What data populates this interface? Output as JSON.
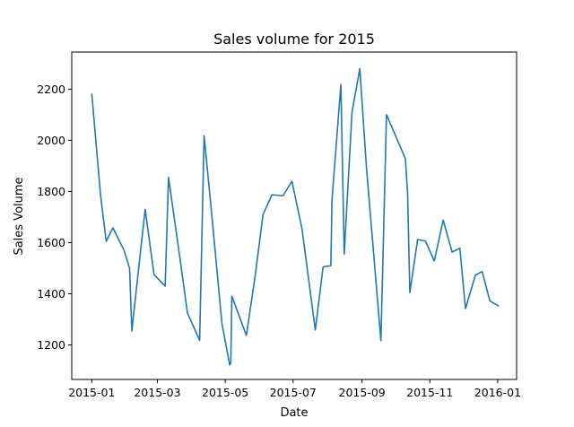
{
  "chart_data": {
    "type": "line",
    "title": "Sales volume for 2015",
    "xlabel": "Date",
    "ylabel": "Sales Volume",
    "grid": false,
    "legend": "none",
    "xlim": [
      "2014-12-14",
      "2016-01-18"
    ],
    "ylim": [
      1065,
      2345
    ],
    "x_ticks": [
      {
        "date": "2015-01-01",
        "label": "2015-01"
      },
      {
        "date": "2015-03-01",
        "label": "2015-03"
      },
      {
        "date": "2015-05-01",
        "label": "2015-05"
      },
      {
        "date": "2015-07-01",
        "label": "2015-07"
      },
      {
        "date": "2015-09-01",
        "label": "2015-09"
      },
      {
        "date": "2015-11-01",
        "label": "2015-11"
      },
      {
        "date": "2016-01-01",
        "label": "2016-01"
      }
    ],
    "y_ticks": [
      1200,
      1400,
      1600,
      1800,
      2000,
      2200
    ],
    "color": "#1f77b4",
    "series": [
      {
        "x": [
          "2015-01-01",
          "2015-01-09",
          "2015-01-14",
          "2015-01-20",
          "2015-01-30",
          "2015-02-04",
          "2015-02-06",
          "2015-02-18",
          "2015-02-26",
          "2015-03-08",
          "2015-03-11",
          "2015-03-21",
          "2015-03-28",
          "2015-04-08",
          "2015-04-12",
          "2015-04-19",
          "2015-04-28",
          "2015-05-05",
          "2015-05-06",
          "2015-05-07",
          "2015-05-20",
          "2015-05-28",
          "2015-06-04",
          "2015-06-12",
          "2015-06-22",
          "2015-06-30",
          "2015-07-09",
          "2015-07-21",
          "2015-07-28",
          "2015-08-04",
          "2015-08-05",
          "2015-08-13",
          "2015-08-16",
          "2015-08-23",
          "2015-08-30",
          "2015-09-05",
          "2015-09-18",
          "2015-09-23",
          "2015-10-10",
          "2015-10-12",
          "2015-10-14",
          "2015-10-21",
          "2015-10-28",
          "2015-11-05",
          "2015-11-13",
          "2015-11-21",
          "2015-11-28",
          "2015-12-03",
          "2015-12-12",
          "2015-12-18",
          "2015-12-25",
          "2016-01-02"
        ],
        "y": [
          2183,
          1780,
          1605,
          1658,
          1570,
          1500,
          1255,
          1730,
          1475,
          1430,
          1855,
          1548,
          1325,
          1218,
          2018,
          1705,
          1285,
          1122,
          1128,
          1390,
          1237,
          1472,
          1710,
          1787,
          1783,
          1840,
          1655,
          1258,
          1505,
          1510,
          1767,
          2218,
          1555,
          2110,
          2280,
          1893,
          1217,
          2100,
          1928,
          1792,
          1405,
          1612,
          1606,
          1528,
          1688,
          1563,
          1578,
          1342,
          1473,
          1487,
          1372,
          1352
        ]
      }
    ]
  }
}
